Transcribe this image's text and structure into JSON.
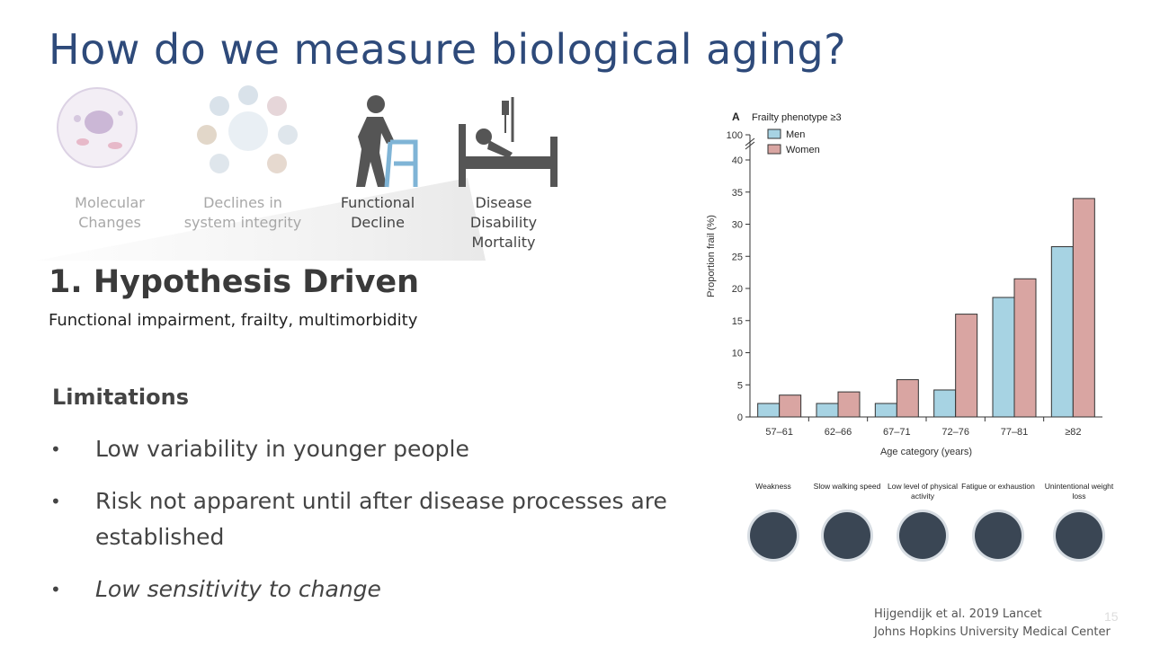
{
  "title": "How do we measure biological aging?",
  "stages": [
    {
      "lines": [
        "Molecular",
        "Changes"
      ],
      "icon": "cell-icon"
    },
    {
      "lines": [
        "Declines in",
        "system integrity"
      ],
      "icon": "organs-icon"
    },
    {
      "lines": [
        "Functional",
        "Decline"
      ],
      "icon": "walker-person-icon"
    },
    {
      "lines": [
        "Disease",
        "Disability",
        "Mortality"
      ],
      "icon": "hospital-bed-icon"
    }
  ],
  "section_heading": "1. Hypothesis Driven",
  "section_subtitle": "Functional impairment, frailty, multimorbidity",
  "limitations": {
    "heading": "Limitations",
    "bullets": [
      "Low variability in younger people",
      "Risk not apparent until after disease processes are established",
      "Low sensitivity to change"
    ]
  },
  "chart_data": {
    "type": "bar",
    "panel_label": "A",
    "title": "Frailty phenotype ≥3",
    "categories": [
      "57–61",
      "62–66",
      "67–71",
      "72–76",
      "77–81",
      "≥82"
    ],
    "series": [
      {
        "name": "Men",
        "color": "#a7d3e3",
        "values": [
          2.1,
          2.1,
          2.1,
          4.2,
          18.6,
          26.5
        ]
      },
      {
        "name": "Women",
        "color": "#d9a5a2",
        "values": [
          3.4,
          3.9,
          5.8,
          16.0,
          21.5,
          34.0
        ]
      }
    ],
    "xlabel": "Age category (years)",
    "ylabel": "Proportion frail (%)",
    "ylim": [
      0,
      40
    ],
    "yticks": [
      0,
      5,
      10,
      15,
      20,
      25,
      30,
      35,
      40
    ],
    "axis_break_tick": 100,
    "legend_position": "top-left",
    "grid": false
  },
  "frailty_criteria": [
    {
      "label": "Weakness",
      "icon": "weakness-icon"
    },
    {
      "label": "Slow walking speed",
      "icon": "speedometer-icon"
    },
    {
      "label": "Low level of physical activity",
      "icon": "sitting-person-icon"
    },
    {
      "label": "Fatigue or exhaustion",
      "icon": "fatigue-icon"
    },
    {
      "label": "Unintentional weight loss",
      "icon": "scale-icon"
    }
  ],
  "citation": {
    "line1": "Hijgendijk et al. 2019 Lancet",
    "line2": "Johns Hopkins University Medical Center"
  },
  "page_number": "15"
}
